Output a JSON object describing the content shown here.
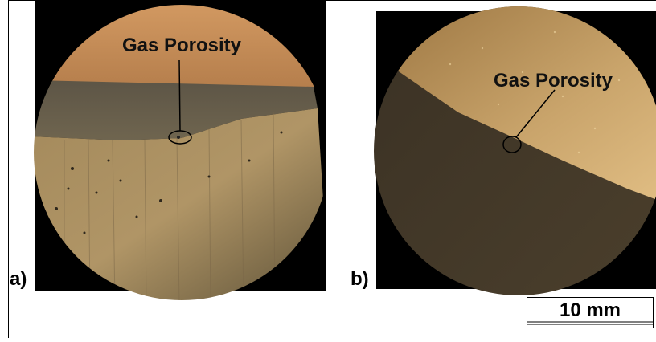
{
  "panels": [
    {
      "label": "a)",
      "annotation": "Gas Porosity"
    },
    {
      "label": "b)",
      "annotation": "Gas Porosity"
    }
  ],
  "scale_bar": {
    "label": "10 mm"
  }
}
